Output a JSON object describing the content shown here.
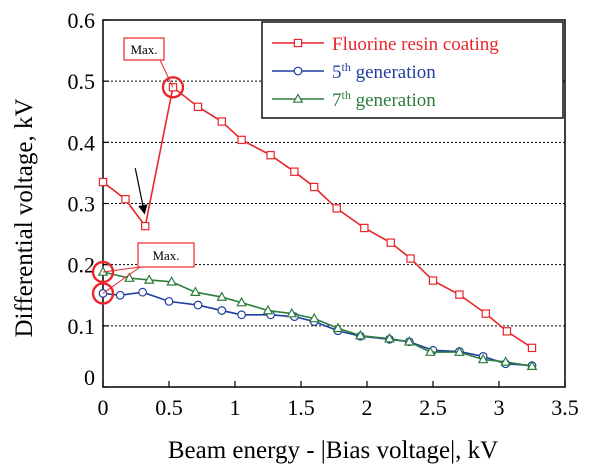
{
  "chart_data": {
    "type": "line",
    "xlabel": "Beam energy - |Bias voltage|, kV",
    "ylabel": "Differential voltage, kV",
    "xlim": [
      0,
      3.5
    ],
    "ylim": [
      0,
      0.6
    ],
    "x_ticks": [
      "0",
      "0.5",
      "1",
      "1.5",
      "2",
      "2.5",
      "3",
      "3.5"
    ],
    "y_ticks": [
      "0",
      "0.1",
      "0.2",
      "0.3",
      "0.4",
      "0.5",
      "0.6"
    ],
    "grid": "horizontal dotted",
    "legend_position": "top-right",
    "series": [
      {
        "name": "Fluorine resin coating",
        "legend_base": "Fluorine resin coating",
        "legend_sup": "",
        "legend_tail": "",
        "color": "#e8262b",
        "marker": "square",
        "points": [
          [
            0,
            0.335
          ],
          [
            0.17,
            0.307
          ],
          [
            0.32,
            0.263
          ],
          [
            0.53,
            0.49
          ],
          [
            0.72,
            0.458
          ],
          [
            0.9,
            0.434
          ],
          [
            1.05,
            0.404
          ],
          [
            1.27,
            0.379
          ],
          [
            1.45,
            0.352
          ],
          [
            1.6,
            0.327
          ],
          [
            1.77,
            0.292
          ],
          [
            1.98,
            0.26
          ],
          [
            2.18,
            0.236
          ],
          [
            2.33,
            0.21
          ],
          [
            2.5,
            0.174
          ],
          [
            2.7,
            0.151
          ],
          [
            2.9,
            0.12
          ],
          [
            3.06,
            0.091
          ],
          [
            3.25,
            0.064
          ]
        ]
      },
      {
        "name": "5th generation",
        "legend_base": "5",
        "legend_sup": "th",
        "legend_tail": " generation",
        "color": "#1f3fa0",
        "marker": "circle",
        "points": [
          [
            0,
            0.153
          ],
          [
            0.13,
            0.15
          ],
          [
            0.3,
            0.155
          ],
          [
            0.5,
            0.14
          ],
          [
            0.72,
            0.134
          ],
          [
            0.9,
            0.125
          ],
          [
            1.05,
            0.118
          ],
          [
            1.27,
            0.118
          ],
          [
            1.45,
            0.115
          ],
          [
            1.6,
            0.107
          ],
          [
            1.78,
            0.092
          ],
          [
            1.95,
            0.083
          ],
          [
            2.17,
            0.078
          ],
          [
            2.32,
            0.074
          ],
          [
            2.5,
            0.06
          ],
          [
            2.7,
            0.058
          ],
          [
            2.88,
            0.05
          ],
          [
            3.05,
            0.038
          ],
          [
            3.25,
            0.035
          ]
        ]
      },
      {
        "name": "7th generation",
        "legend_base": "7",
        "legend_sup": "th",
        "legend_tail": " generation",
        "color": "#2e7d3e",
        "marker": "triangle",
        "points": [
          [
            0,
            0.188
          ],
          [
            0.2,
            0.178
          ],
          [
            0.35,
            0.175
          ],
          [
            0.52,
            0.172
          ],
          [
            0.7,
            0.155
          ],
          [
            0.9,
            0.147
          ],
          [
            1.05,
            0.138
          ],
          [
            1.25,
            0.125
          ],
          [
            1.43,
            0.12
          ],
          [
            1.6,
            0.112
          ],
          [
            1.78,
            0.096
          ],
          [
            1.95,
            0.084
          ],
          [
            2.17,
            0.079
          ],
          [
            2.32,
            0.074
          ],
          [
            2.48,
            0.057
          ],
          [
            2.7,
            0.057
          ],
          [
            2.88,
            0.045
          ],
          [
            3.05,
            0.041
          ],
          [
            3.25,
            0.034
          ]
        ]
      }
    ],
    "annotations": [
      {
        "text": "Max.",
        "box_color": "#e8262b",
        "connects_to": [
          [
            0.53,
            0.49
          ]
        ],
        "arrow_to": [
          0.32,
          0.263
        ],
        "circles_at": [
          [
            0.53,
            0.49
          ]
        ]
      },
      {
        "text": "Max.",
        "box_color": "#e8262b",
        "connects_to": [
          [
            0,
            0.188
          ],
          [
            0,
            0.153
          ]
        ],
        "arrow_to": null,
        "circles_at": [
          [
            0,
            0.188
          ],
          [
            0,
            0.153
          ]
        ]
      }
    ]
  }
}
